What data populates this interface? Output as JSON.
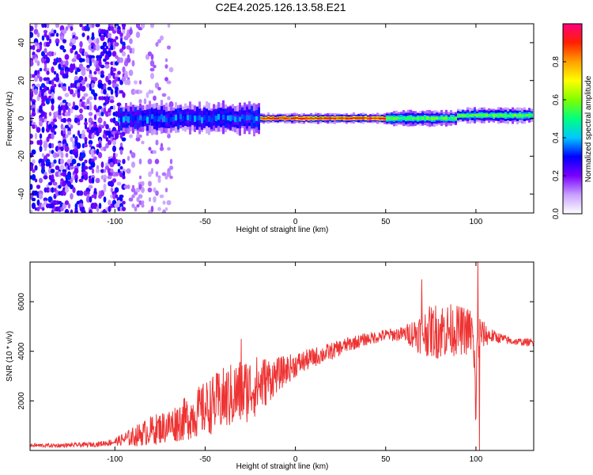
{
  "title": "C2E4.2025.126.13.58.E21",
  "chart_data": [
    {
      "type": "heatmap",
      "name": "spectrogram",
      "xlabel": "Height of straight line (km)",
      "ylabel": "Frequency (Hz)",
      "xlim": [
        -147,
        132
      ],
      "ylim": [
        -50,
        50
      ],
      "xticks": [
        -100,
        -50,
        0,
        50,
        100
      ],
      "yticks": [
        -40,
        -20,
        0,
        20,
        40
      ],
      "colorbar": {
        "label": "Normalized spectral amplitude",
        "range": [
          0,
          1
        ],
        "ticks": [
          0.0,
          0.2,
          0.4,
          0.6,
          0.8
        ],
        "tick_labels": [
          "0.0",
          "0.2",
          "0.4",
          "0.6",
          "0.8"
        ],
        "colors": [
          "#ffffff",
          "#c8a0ff",
          "#7a00ff",
          "#0000ff",
          "#00c8ff",
          "#00ff80",
          "#80ff00",
          "#ffff00",
          "#ffa000",
          "#ff2000",
          "#ff0080"
        ]
      },
      "regions": [
        {
          "from": -147,
          "to": -95,
          "description": "noise",
          "intensity": 0.15,
          "half_width_hz": 50
        },
        {
          "from": -95,
          "to": -68,
          "description": "sparse noise",
          "intensity": 0.05,
          "half_width_hz": 50
        },
        {
          "from": -98,
          "to": -20,
          "description": "signal band",
          "intensity": 0.35,
          "half_width_hz": 6
        },
        {
          "from": -20,
          "to": 50,
          "description": "strong signal",
          "intensity": 0.9,
          "half_width_hz": 2
        },
        {
          "from": 50,
          "to": 132,
          "description": "signal",
          "intensity": 0.55,
          "half_width_hz": 3
        }
      ]
    },
    {
      "type": "line",
      "name": "snr",
      "xlabel": "Height of straight line (km)",
      "ylabel": "SNR (10 * v/v)",
      "xlim": [
        -147,
        132
      ],
      "ylim": [
        0,
        7600
      ],
      "xticks": [
        -100,
        -50,
        0,
        50,
        100
      ],
      "yticks": [
        2000,
        4000,
        6000
      ],
      "color": "#ee3333",
      "series": [
        {
          "name": "SNR",
          "x": [
            -147,
            -130,
            -110,
            -100,
            -90,
            -80,
            -70,
            -60,
            -50,
            -40,
            -30,
            -20,
            -10,
            0,
            10,
            20,
            30,
            40,
            50,
            60,
            70,
            80,
            90,
            98,
            100,
            101,
            103,
            110,
            120,
            132
          ],
          "base": [
            200,
            200,
            250,
            350,
            550,
            800,
            1000,
            1300,
            1700,
            2050,
            2350,
            2650,
            3050,
            3450,
            3750,
            4000,
            4300,
            4500,
            4650,
            4700,
            4750,
            4850,
            4850,
            4800,
            2000,
            4500,
            4700,
            4600,
            4400,
            4350
          ],
          "noise": [
            80,
            80,
            100,
            150,
            400,
            600,
            700,
            900,
            1100,
            1300,
            1400,
            1200,
            700,
            500,
            400,
            350,
            300,
            250,
            250,
            300,
            900,
            1200,
            1000,
            1000,
            1500,
            1500,
            600,
            250,
            150,
            150
          ]
        }
      ],
      "peaks": [
        {
          "x": -30,
          "y": 4500
        },
        {
          "x": 70,
          "y": 6900
        },
        {
          "x": 101,
          "y": 7600
        },
        {
          "x": 102,
          "y": 0
        }
      ]
    }
  ]
}
